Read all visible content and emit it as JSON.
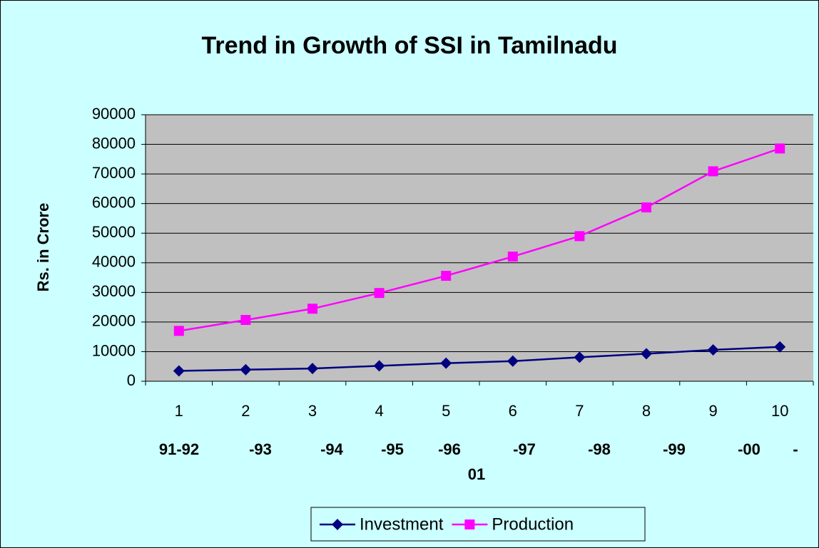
{
  "chart_data": {
    "type": "line",
    "title": "Trend in Growth of SSI in Tamilnadu",
    "ylabel": "Rs. in Crore",
    "xlabel_parts": [
      "91-92",
      "-93",
      "-94",
      "-95",
      "-96",
      "-97",
      "-98",
      "-99",
      "-00",
      "-",
      "01"
    ],
    "categories": [
      "1",
      "2",
      "3",
      "4",
      "5",
      "6",
      "7",
      "8",
      "9",
      "10"
    ],
    "series": [
      {
        "name": "Investment",
        "color": "#000080",
        "marker": "diamond",
        "values": [
          3500,
          3900,
          4300,
          5200,
          6100,
          6800,
          8100,
          9300,
          10600,
          11600
        ]
      },
      {
        "name": "Production",
        "color": "#ff00ff",
        "marker": "square",
        "values": [
          17000,
          20700,
          24500,
          29800,
          35600,
          42100,
          49000,
          58700,
          70900,
          78600
        ]
      }
    ],
    "ylim": [
      0,
      90000
    ],
    "yticks": [
      0,
      10000,
      20000,
      30000,
      40000,
      50000,
      60000,
      70000,
      80000,
      90000
    ],
    "grid": true,
    "legend": "bottom"
  }
}
